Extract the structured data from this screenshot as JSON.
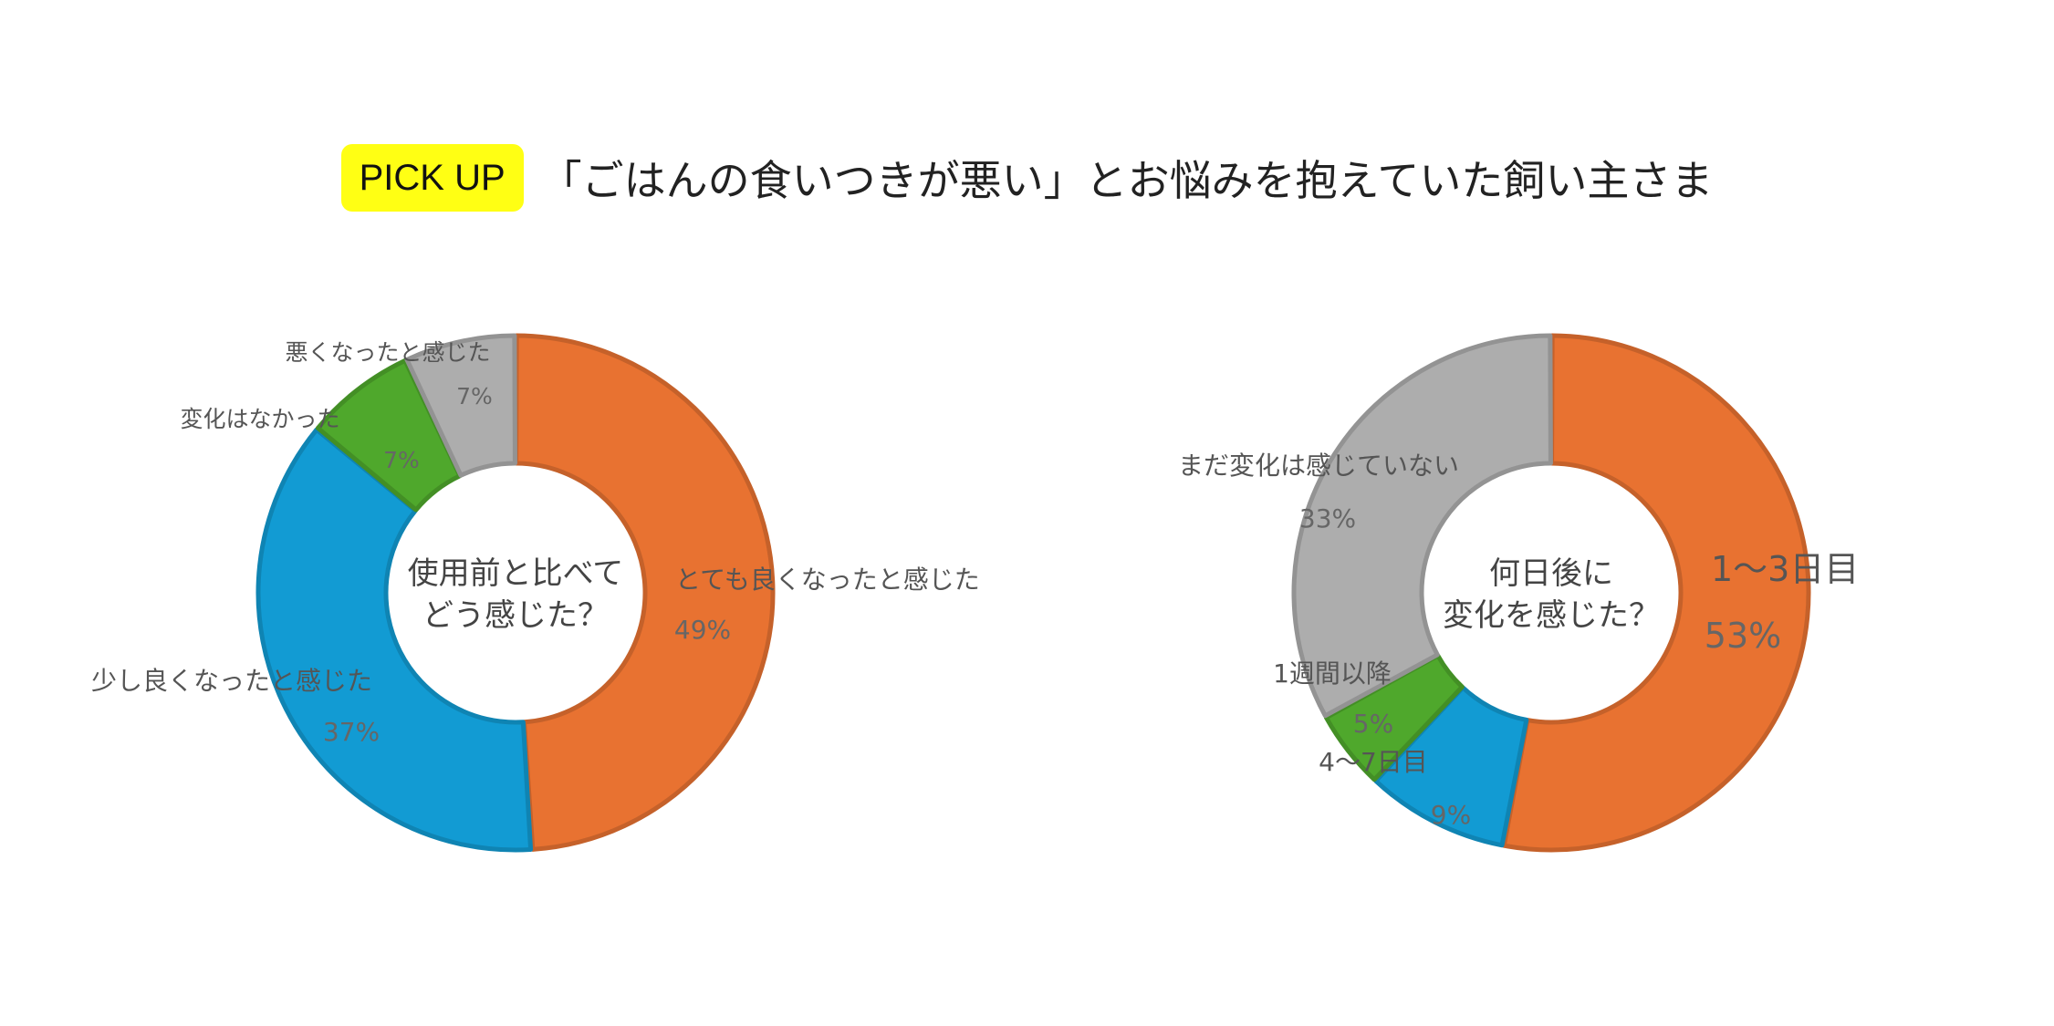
{
  "header": {
    "badge": "PICK UP",
    "title": "「ごはんの食いつきが悪い」とお悩みを抱えていた飼い主さま"
  },
  "colors": {
    "orange": "#e87231",
    "blue": "#129bd3",
    "green": "#4fa82c",
    "gray": "#adadad"
  },
  "chart_data": [
    {
      "type": "pie",
      "donut": true,
      "center_text": [
        "使用前と比べて",
        "どう感じた？"
      ],
      "categories": [
        "とても良くなったと感じた",
        "少し良くなったと感じた",
        "変化はなかった",
        "悪くなったと感じた"
      ],
      "values": [
        49,
        37,
        7,
        7
      ],
      "value_labels": [
        "49%",
        "37%",
        "7%",
        "7%"
      ],
      "colors": [
        "#e87231",
        "#129bd3",
        "#4fa82c",
        "#adadad"
      ]
    },
    {
      "type": "pie",
      "donut": true,
      "center_text": [
        "何日後に",
        "変化を感じた？"
      ],
      "categories": [
        "1〜3日目",
        "4〜7日目",
        "1週間以降",
        "まだ変化は感じていない"
      ],
      "values": [
        53,
        9,
        5,
        33
      ],
      "value_labels": [
        "53%",
        "9%",
        "5%",
        "33%"
      ],
      "colors": [
        "#e87231",
        "#129bd3",
        "#4fa82c",
        "#adadad"
      ]
    }
  ]
}
